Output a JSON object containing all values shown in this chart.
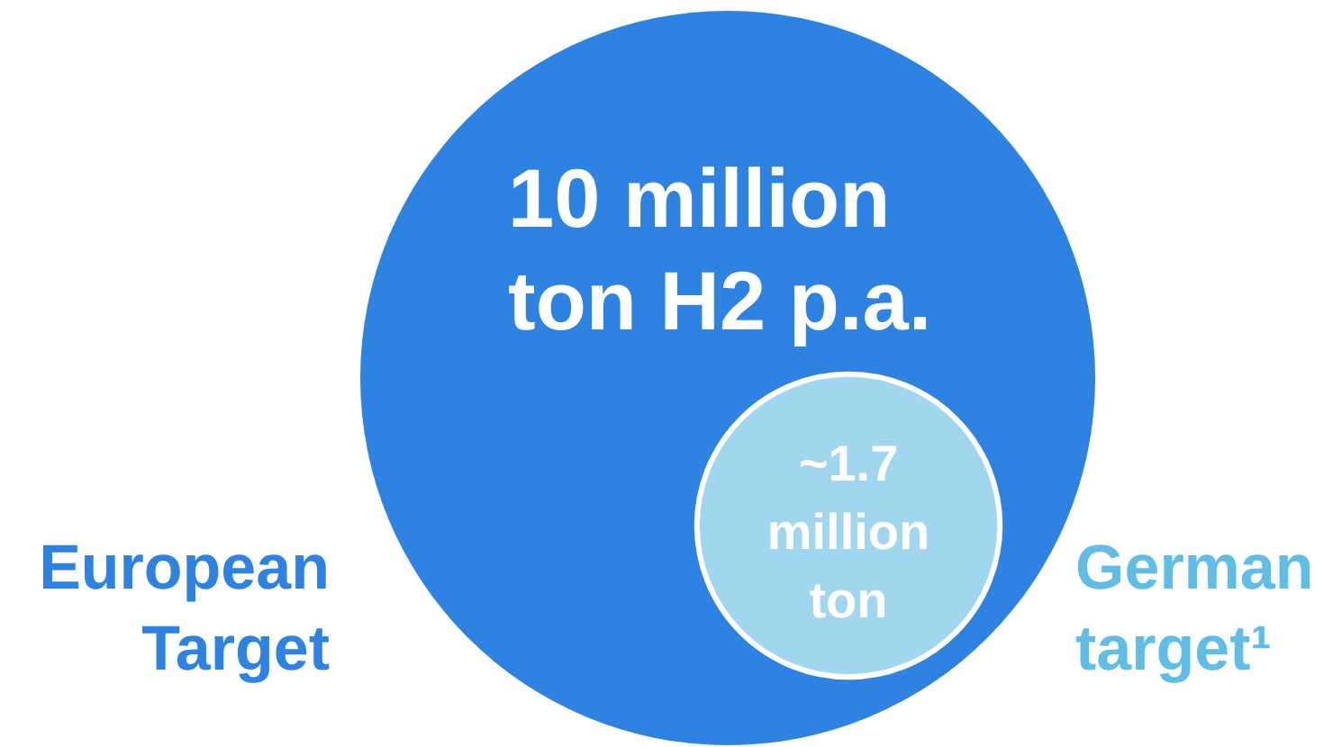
{
  "chart_data": {
    "type": "other",
    "categories": [
      "European Target",
      "German target¹"
    ],
    "values": [
      10000000,
      1700000
    ],
    "value_labels": [
      "10 million ton H2 p.a.",
      "~1.7 million ton"
    ],
    "colors": [
      "#2e83e2",
      "#a0d6ee"
    ]
  }
}
